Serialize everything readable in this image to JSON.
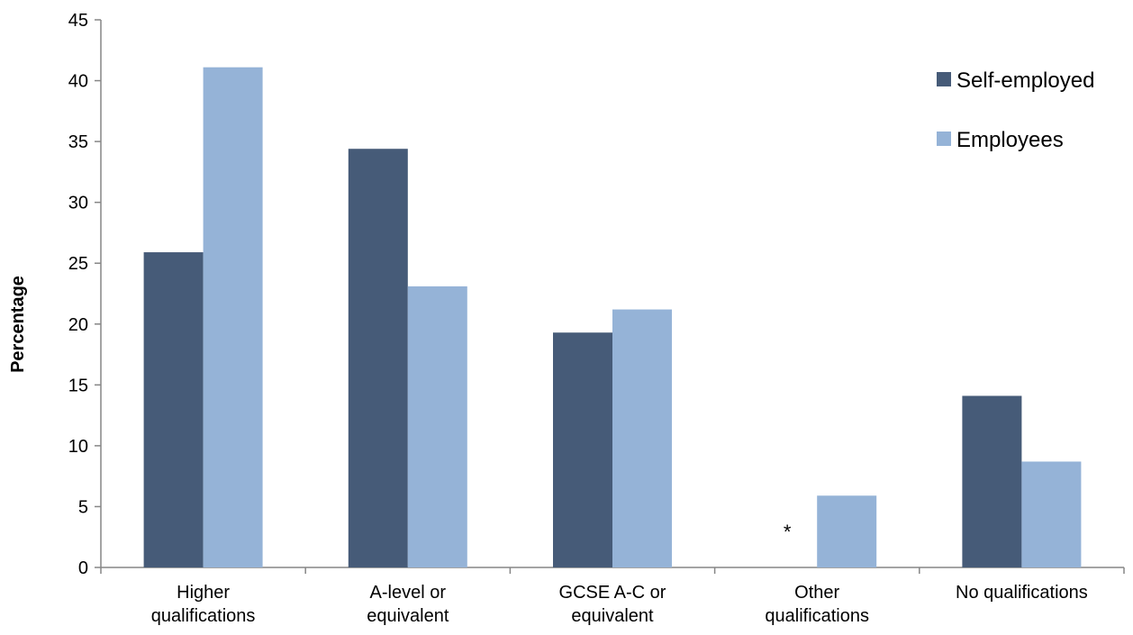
{
  "chart_data": {
    "type": "bar",
    "title": "",
    "xlabel": "",
    "ylabel": "Percentage",
    "ylim": [
      0,
      45
    ],
    "yticks": [
      0,
      5,
      10,
      15,
      20,
      25,
      30,
      35,
      40,
      45
    ],
    "grid": false,
    "legend_position": "top-right",
    "categories": [
      [
        "Higher",
        "qualifications"
      ],
      [
        "A-level or",
        "equivalent"
      ],
      [
        "GCSE A-C or",
        "equivalent"
      ],
      [
        "Other",
        "qualifications"
      ],
      [
        "No qualifications"
      ]
    ],
    "series": [
      {
        "name": "Self-employed",
        "color": "#465b78",
        "values": [
          25.9,
          34.4,
          19.3,
          null,
          14.1
        ]
      },
      {
        "name": "Employees",
        "color": "#95b3d7",
        "values": [
          41.1,
          23.1,
          21.2,
          5.9,
          8.7
        ]
      }
    ],
    "annotations": [
      {
        "category_index": 3,
        "series_index": 0,
        "text": "*"
      }
    ]
  }
}
